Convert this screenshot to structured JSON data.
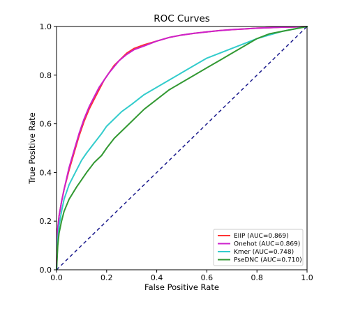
{
  "chart_data": {
    "type": "line",
    "title": "ROC Curves",
    "xlabel": "False Positive Rate",
    "ylabel": "True Positive Rate",
    "xlim": [
      0.0,
      1.0
    ],
    "ylim": [
      0.0,
      1.0
    ],
    "xticks": [
      "0.0",
      "0.2",
      "0.4",
      "0.6",
      "0.8",
      "1.0"
    ],
    "yticks": [
      "0.0",
      "0.2",
      "0.4",
      "0.6",
      "0.8",
      "1.0"
    ],
    "grid": false,
    "legend_position": "lower-right",
    "series": [
      {
        "name": "EIIP  (AUC=0.869)",
        "color": "#ff3333",
        "x": [
          0.0,
          0.003,
          0.01,
          0.02,
          0.03,
          0.05,
          0.07,
          0.09,
          0.11,
          0.13,
          0.15,
          0.17,
          0.19,
          0.21,
          0.23,
          0.25,
          0.28,
          0.31,
          0.35,
          0.4,
          0.45,
          0.5,
          0.55,
          0.6,
          0.65,
          0.7,
          0.75,
          0.8,
          0.85,
          0.9,
          0.95,
          1.0
        ],
        "y": [
          0.0,
          0.15,
          0.22,
          0.28,
          0.33,
          0.41,
          0.48,
          0.55,
          0.61,
          0.66,
          0.7,
          0.74,
          0.78,
          0.81,
          0.84,
          0.86,
          0.89,
          0.91,
          0.925,
          0.94,
          0.955,
          0.965,
          0.972,
          0.978,
          0.983,
          0.987,
          0.99,
          0.993,
          0.995,
          0.997,
          0.998,
          1.0
        ]
      },
      {
        "name": "Onehot  (AUC=0.869)",
        "color": "#cc22cc",
        "x": [
          0.0,
          0.003,
          0.01,
          0.02,
          0.03,
          0.05,
          0.07,
          0.09,
          0.11,
          0.13,
          0.15,
          0.17,
          0.19,
          0.21,
          0.23,
          0.25,
          0.28,
          0.31,
          0.35,
          0.4,
          0.45,
          0.5,
          0.55,
          0.6,
          0.65,
          0.7,
          0.75,
          0.8,
          0.85,
          0.9,
          0.95,
          1.0
        ],
        "y": [
          0.0,
          0.15,
          0.22,
          0.28,
          0.33,
          0.42,
          0.49,
          0.56,
          0.62,
          0.67,
          0.71,
          0.75,
          0.78,
          0.81,
          0.835,
          0.86,
          0.885,
          0.905,
          0.92,
          0.94,
          0.955,
          0.965,
          0.972,
          0.978,
          0.983,
          0.987,
          0.99,
          0.993,
          0.995,
          0.997,
          0.998,
          1.0
        ]
      },
      {
        "name": "Kmer  (AUC=0.748)",
        "color": "#33cccc",
        "x": [
          0.0,
          0.005,
          0.01,
          0.02,
          0.03,
          0.05,
          0.08,
          0.1,
          0.12,
          0.15,
          0.18,
          0.2,
          0.23,
          0.26,
          0.3,
          0.35,
          0.4,
          0.45,
          0.5,
          0.55,
          0.6,
          0.65,
          0.7,
          0.75,
          0.8,
          0.85,
          0.9,
          0.95,
          1.0
        ],
        "y": [
          0.0,
          0.12,
          0.18,
          0.24,
          0.29,
          0.35,
          0.41,
          0.45,
          0.48,
          0.52,
          0.56,
          0.59,
          0.62,
          0.65,
          0.68,
          0.72,
          0.75,
          0.78,
          0.81,
          0.84,
          0.87,
          0.89,
          0.91,
          0.93,
          0.95,
          0.965,
          0.98,
          0.99,
          1.0
        ]
      },
      {
        "name": "PseDNC  (AUC=0.710)",
        "color": "#339933",
        "x": [
          0.0,
          0.005,
          0.01,
          0.02,
          0.03,
          0.05,
          0.08,
          0.1,
          0.12,
          0.15,
          0.18,
          0.2,
          0.23,
          0.26,
          0.3,
          0.35,
          0.4,
          0.45,
          0.5,
          0.55,
          0.6,
          0.65,
          0.7,
          0.75,
          0.8,
          0.85,
          0.9,
          0.95,
          1.0
        ],
        "y": [
          0.0,
          0.1,
          0.15,
          0.2,
          0.24,
          0.29,
          0.34,
          0.37,
          0.4,
          0.44,
          0.47,
          0.5,
          0.54,
          0.57,
          0.61,
          0.66,
          0.7,
          0.74,
          0.77,
          0.8,
          0.83,
          0.86,
          0.89,
          0.92,
          0.95,
          0.97,
          0.98,
          0.99,
          1.0
        ]
      }
    ],
    "reference_line": {
      "x": [
        0.0,
        1.0
      ],
      "y": [
        0.0,
        1.0
      ],
      "color": "#1a1a8c",
      "style": "dashed"
    }
  }
}
